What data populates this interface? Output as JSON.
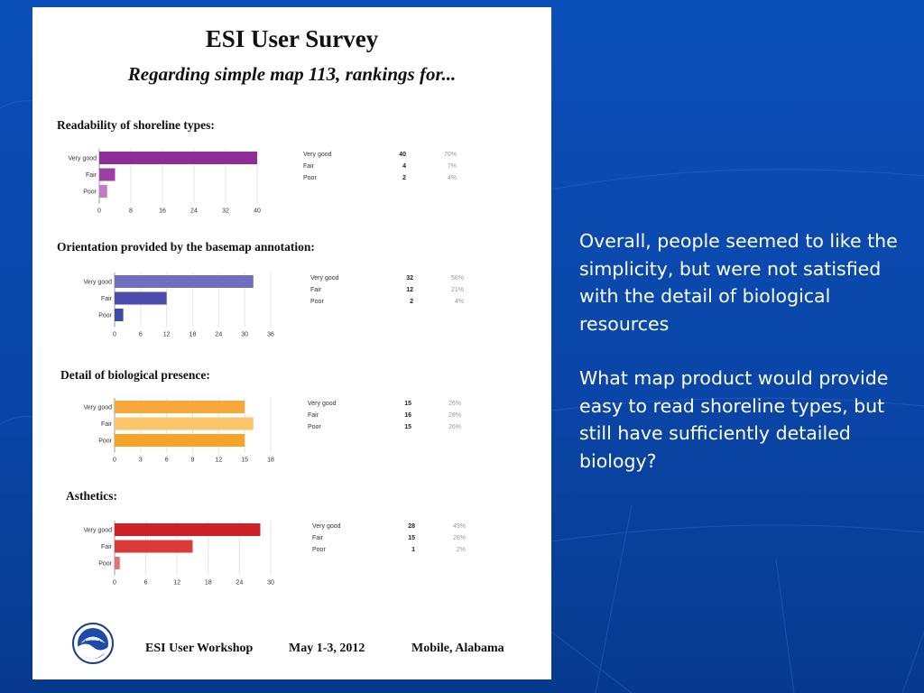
{
  "survey": {
    "title": "ESI User Survey",
    "subtitle": "Regarding simple map 113, rankings for..."
  },
  "footer": {
    "workshop": "ESI User Workshop",
    "dates": "May 1-3, 2012",
    "location": "Mobile, Alabama",
    "logo_text": "NOAA"
  },
  "commentary": {
    "paragraph1": "Overall, people seemed to like the simplicity, but were not satisfied with the detail of biological resources",
    "paragraph2": "What map product would provide easy to read shoreline types, but still have sufficiently detailed biology?"
  },
  "chart_data": [
    {
      "type": "bar",
      "orientation": "horizontal",
      "title": "Readability of shoreline types:",
      "categories": [
        "Very good",
        "Fair",
        "Poor"
      ],
      "values": [
        40,
        4,
        2
      ],
      "percents": [
        "70%",
        "7%",
        "4%"
      ],
      "xlim": [
        0,
        40
      ],
      "xticks": [
        0,
        8,
        16,
        24,
        32,
        40
      ],
      "colors": [
        "#8e2d95",
        "#9c3fa5",
        "#c27ac8"
      ]
    },
    {
      "type": "bar",
      "orientation": "horizontal",
      "title": "Orientation provided by the basemap annotation:",
      "categories": [
        "Very good",
        "Fair",
        "Poor"
      ],
      "values": [
        32,
        12,
        2
      ],
      "percents": [
        "56%",
        "21%",
        "4%"
      ],
      "xlim": [
        0,
        36
      ],
      "xticks": [
        0,
        6,
        12,
        18,
        24,
        30,
        36
      ],
      "colors": [
        "#6f6fc2",
        "#4c4cad",
        "#3c4aa8"
      ]
    },
    {
      "type": "bar",
      "orientation": "horizontal",
      "title": "Detail of biological presence:",
      "categories": [
        "Very good",
        "Fair",
        "Poor"
      ],
      "values": [
        15,
        16,
        15
      ],
      "percents": [
        "26%",
        "28%",
        "26%"
      ],
      "xlim": [
        0,
        18
      ],
      "xticks": [
        0,
        3,
        6,
        9,
        12,
        15,
        18
      ],
      "colors": [
        "#f6a938",
        "#fbc56b",
        "#f7a22a"
      ]
    },
    {
      "type": "bar",
      "orientation": "horizontal",
      "title": "Asthetics:",
      "categories": [
        "Very good",
        "Fair",
        "Poor"
      ],
      "values": [
        28,
        15,
        1
      ],
      "percents": [
        "49%",
        "26%",
        "2%"
      ],
      "xlim": [
        0,
        30
      ],
      "xticks": [
        0,
        6,
        12,
        18,
        24,
        30
      ],
      "colors": [
        "#cc1f26",
        "#db3a3a",
        "#e37373"
      ]
    }
  ]
}
